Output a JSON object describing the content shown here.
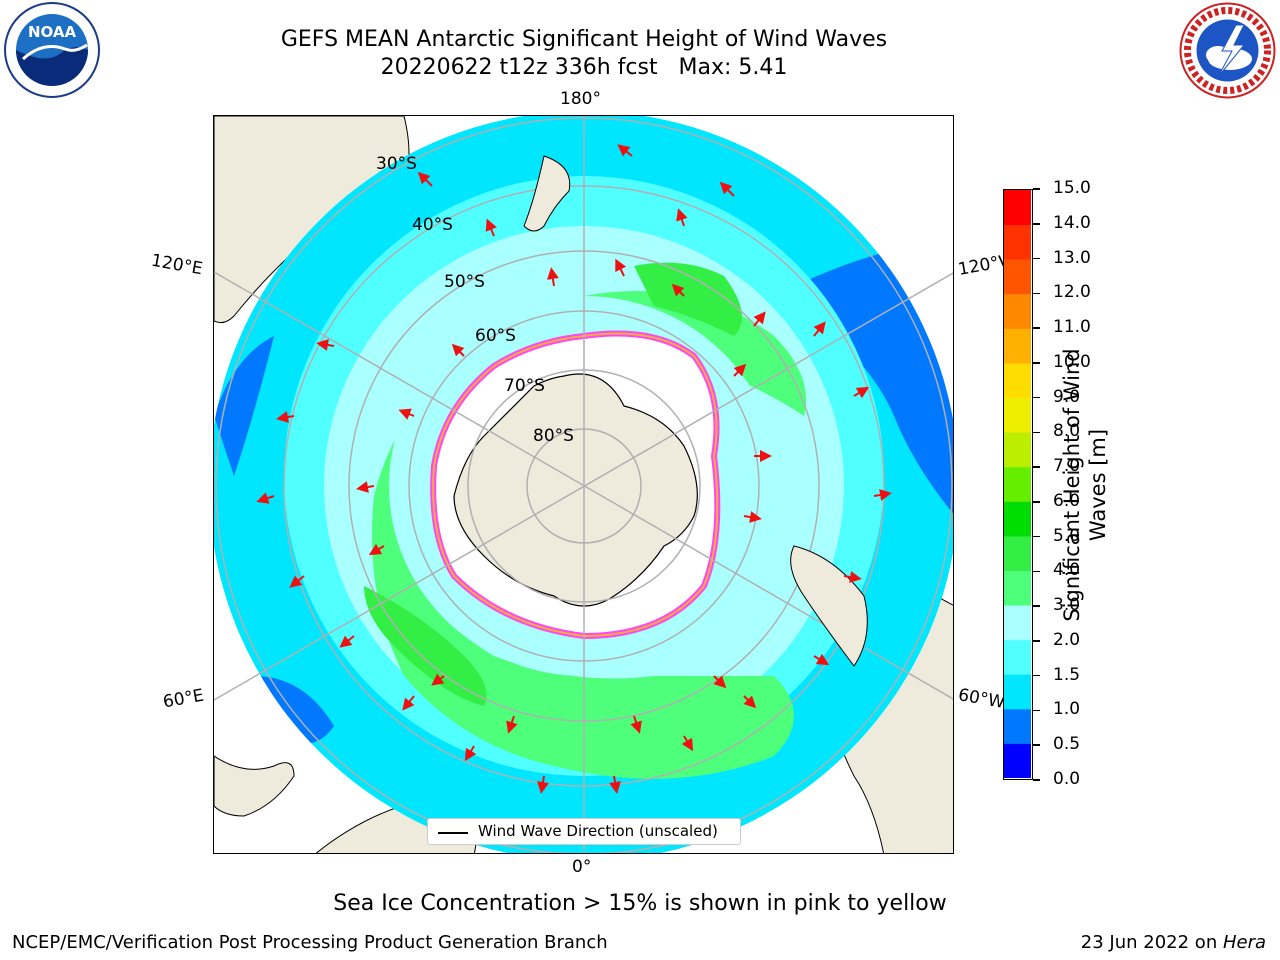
{
  "title": {
    "line1": "GEFS MEAN Antarctic Significant Height of Wind Waves",
    "line2": "20220622 t12z 336h fcst   Max: 5.41"
  },
  "map": {
    "projection": "south-polar-stereographic",
    "lon_labels": {
      "top": "180°",
      "bottom": "0°",
      "upper_left": "120°E",
      "upper_right": "120°W",
      "lower_left": "60°E",
      "lower_right": "60°W"
    },
    "lat_labels": [
      "30°S",
      "40°S",
      "50°S",
      "60°S",
      "70°S",
      "80°S"
    ],
    "land_color": "#efebdc",
    "sea_ice_color": "#ffffff",
    "ice_edge_colors": [
      "#ff44ff",
      "#ffb030",
      "#ffe000"
    ],
    "arrow_color": "#ee1111",
    "gridline_color": "#b0b0b0"
  },
  "legend": {
    "label": "Wind Wave Direction (unscaled)"
  },
  "colorbar": {
    "title": "Significant Height of Wind Waves [m]",
    "ticks": [
      "0.0",
      "0.5",
      "1.0",
      "1.5",
      "2.0",
      "3.0",
      "4.0",
      "5.0",
      "6.0",
      "7.0",
      "8.0",
      "9.0",
      "10.0",
      "11.0",
      "12.0",
      "13.0",
      "14.0",
      "15.0"
    ],
    "colors": [
      "#0000ff",
      "#0078ff",
      "#00e6ff",
      "#50ffff",
      "#aaffff",
      "#4dff7a",
      "#33ee44",
      "#00dd00",
      "#66ee00",
      "#bbee00",
      "#eeee00",
      "#ffdd00",
      "#ffb000",
      "#ff8800",
      "#ff5500",
      "#ff3300",
      "#ff0000"
    ]
  },
  "footer": {
    "note": "Sea Ice Concentration > 15% is shown in pink to yellow",
    "credit_left": "NCEP/EMC/Verification Post Processing Product Generation Branch",
    "credit_date": "23 Jun 2022 on ",
    "credit_machine": "Hera"
  },
  "logos": {
    "left": "NOAA",
    "right": "NATIONAL WEATHER SERVICE"
  }
}
